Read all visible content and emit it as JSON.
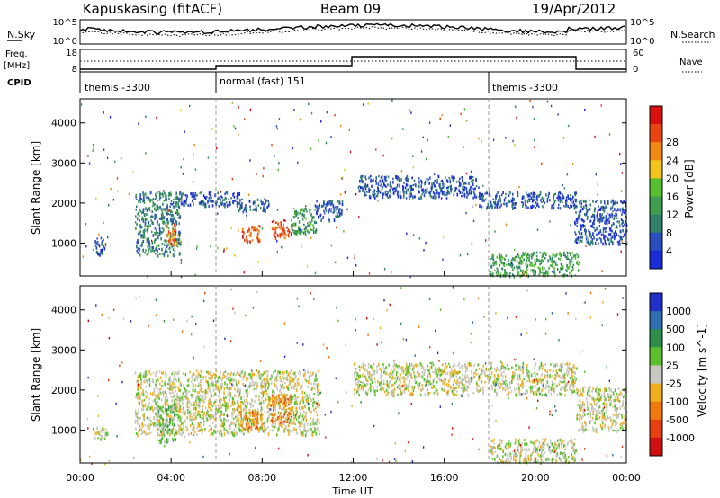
{
  "header": {
    "station": "Kapuskasing (fitACF)",
    "beam": "Beam 09",
    "date": "19/Apr/2012"
  },
  "top_panels": {
    "nsky_label": "N.Sky",
    "nsearch_label": "N.Search",
    "noise_ticks_left": [
      "10^5",
      "10^0"
    ],
    "noise_ticks_right": [
      "10^5",
      "10^0"
    ],
    "freq_label_1": "Freq.",
    "freq_label_2": "[MHz]",
    "freq_ticks": [
      "18",
      "8"
    ],
    "nave_label": "Nave",
    "nave_ticks": [
      "60",
      "0"
    ],
    "cpid_label": "CPID",
    "modes": [
      {
        "label": "themis -3300",
        "start_h": 0,
        "end_h": 6
      },
      {
        "label": "normal (fast) 151",
        "start_h": 6,
        "end_h": 18
      },
      {
        "label": "themis -3300",
        "start_h": 18,
        "end_h": 24
      }
    ]
  },
  "chart_data": [
    {
      "type": "heatmap",
      "name": "power",
      "ylabel": "Slant Range [km]",
      "yticks": [
        1000,
        2000,
        3000,
        4000
      ],
      "ylim": [
        180,
        4600
      ],
      "xlim_hours": [
        0,
        24
      ],
      "colorbar": {
        "label": "Power [dB]",
        "ticks": [
          "4",
          "8",
          "12",
          "16",
          "20",
          "24",
          "28"
        ],
        "colors": [
          "#1a2bd8",
          "#2b4fc0",
          "#2f7f6a",
          "#3f9f50",
          "#58c030",
          "#f2c41c",
          "#f08a14",
          "#e8450f",
          "#d81010"
        ]
      },
      "echo_regions": [
        {
          "t0": 0.6,
          "t1": 1.1,
          "r0": 700,
          "r1": 1200,
          "level": 1
        },
        {
          "t0": 2.4,
          "t1": 4.4,
          "r0": 700,
          "r1": 2300,
          "level": 2
        },
        {
          "t0": 3.8,
          "t1": 4.3,
          "r0": 950,
          "r1": 1500,
          "level": 6
        },
        {
          "t0": 4.2,
          "t1": 7.0,
          "r0": 1950,
          "r1": 2300,
          "level": 1
        },
        {
          "t0": 6.9,
          "t1": 8.3,
          "r0": 1800,
          "r1": 2150,
          "level": 1
        },
        {
          "t0": 7.1,
          "t1": 7.9,
          "r0": 1050,
          "r1": 1500,
          "level": 7
        },
        {
          "t0": 8.4,
          "t1": 9.3,
          "r0": 1150,
          "r1": 1600,
          "level": 7
        },
        {
          "t0": 9.3,
          "t1": 10.4,
          "r0": 1250,
          "r1": 1900,
          "level": 3
        },
        {
          "t0": 10.3,
          "t1": 11.5,
          "r0": 1600,
          "r1": 2100,
          "level": 1
        },
        {
          "t0": 12.2,
          "t1": 17.5,
          "r0": 2150,
          "r1": 2700,
          "level": 1
        },
        {
          "t0": 17.5,
          "t1": 21.8,
          "r0": 1900,
          "r1": 2300,
          "level": 1
        },
        {
          "t0": 18.0,
          "t1": 21.9,
          "r0": 200,
          "r1": 800,
          "level": 3
        },
        {
          "t0": 21.7,
          "t1": 24.0,
          "r0": 1000,
          "r1": 2100,
          "level": 1
        }
      ]
    },
    {
      "type": "heatmap",
      "name": "velocity",
      "ylabel": "Slant Range [km]",
      "yticks": [
        1000,
        2000,
        3000,
        4000
      ],
      "ylim": [
        180,
        4600
      ],
      "xlim_hours": [
        0,
        24
      ],
      "xticks": [
        "00:00",
        "04:00",
        "08:00",
        "12:00",
        "16:00",
        "20:00",
        "00:00"
      ],
      "xlabel": "Time UT",
      "colorbar": {
        "label": "Velocity [m s^-1]",
        "ticks": [
          "1000",
          "500",
          "100",
          "25",
          "-25",
          "-100",
          "-500",
          "-1000"
        ],
        "colors": [
          "#2030c8",
          "#2f6fb0",
          "#2f8f4a",
          "#5cc02e",
          "#c8c8c0",
          "#f0b020",
          "#f07a10",
          "#e84010",
          "#d01010"
        ]
      },
      "echo_regions": [
        {
          "t0": 0.5,
          "t1": 1.2,
          "r0": 800,
          "r1": 1100,
          "level": 4
        },
        {
          "t0": 2.4,
          "t1": 10.5,
          "r0": 900,
          "r1": 2500,
          "level": 4
        },
        {
          "t0": 3.4,
          "t1": 4.2,
          "r0": 700,
          "r1": 1700,
          "level": 3
        },
        {
          "t0": 7.0,
          "t1": 8.0,
          "r0": 1000,
          "r1": 1500,
          "level": 6
        },
        {
          "t0": 8.3,
          "t1": 9.3,
          "r0": 1200,
          "r1": 1900,
          "level": 6
        },
        {
          "t0": 12.0,
          "t1": 21.8,
          "r0": 1900,
          "r1": 2700,
          "level": 4
        },
        {
          "t0": 18.0,
          "t1": 21.8,
          "r0": 200,
          "r1": 800,
          "level": 4
        },
        {
          "t0": 21.8,
          "t1": 24.0,
          "r0": 1000,
          "r1": 2100,
          "level": 4
        }
      ]
    }
  ]
}
